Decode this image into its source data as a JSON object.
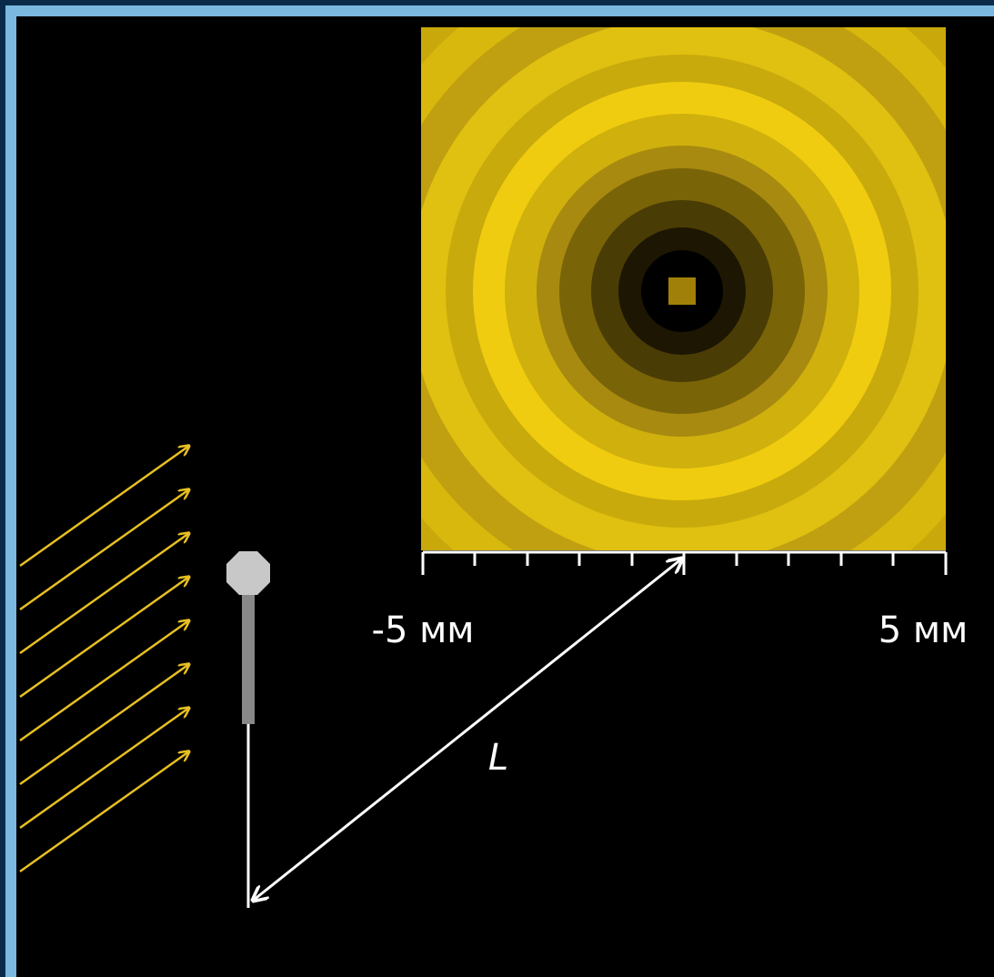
{
  "screen": {
    "scale": {
      "min_label": "-5 мм",
      "max_label": "5 мм"
    },
    "distance_label": "L"
  }
}
